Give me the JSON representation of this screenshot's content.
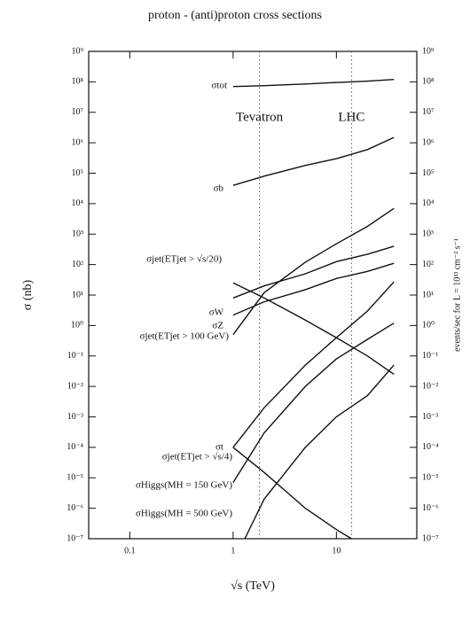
{
  "chart_data": {
    "type": "line",
    "title": "proton - (anti)proton cross sections",
    "x_label": "√s  (TeV)",
    "y_label": "σ  (nb)",
    "y2_label": "events/sec  for  L = 10³³ cm⁻² s⁻¹",
    "xlog": true,
    "ylog": true,
    "xlim": [
      0.04,
      60
    ],
    "ylim": [
      1e-07,
      1000000000.0
    ],
    "y2lim": [
      1e-07,
      1000000000.0
    ],
    "xticks": [
      0.1,
      1,
      10
    ],
    "yticks": [
      {
        "value": 1e-07,
        "label": "10⁻⁷"
      },
      {
        "value": 1e-06,
        "label": "10⁻⁶"
      },
      {
        "value": 1e-05,
        "label": "10⁻⁵"
      },
      {
        "value": 0.0001,
        "label": "10⁻⁴"
      },
      {
        "value": 0.001,
        "label": "10⁻³"
      },
      {
        "value": 0.01,
        "label": "10⁻²"
      },
      {
        "value": 0.1,
        "label": "10⁻¹"
      },
      {
        "value": 1,
        "label": "10⁰"
      },
      {
        "value": 10,
        "label": "10¹"
      },
      {
        "value": 100,
        "label": "10²"
      },
      {
        "value": 1000,
        "label": "10³"
      },
      {
        "value": 10000,
        "label": "10⁴"
      },
      {
        "value": 100000,
        "label": "10⁵"
      },
      {
        "value": 1000000,
        "label": "10⁶"
      },
      {
        "value": 10000000,
        "label": "10⁷"
      },
      {
        "value": 100000000,
        "label": "10⁸"
      },
      {
        "value": 1000000000,
        "label": "10⁹"
      }
    ],
    "y2ticks": [
      {
        "value": 1e-07,
        "label": "10⁻⁷"
      },
      {
        "value": 1e-06,
        "label": "10⁻⁶"
      },
      {
        "value": 1e-05,
        "label": "10⁻⁵"
      },
      {
        "value": 0.0001,
        "label": "10⁻⁴"
      },
      {
        "value": 0.001,
        "label": "10⁻³"
      },
      {
        "value": 0.01,
        "label": "10⁻²"
      },
      {
        "value": 0.1,
        "label": "10⁻¹"
      },
      {
        "value": 1,
        "label": "10⁰"
      },
      {
        "value": 10,
        "label": "10¹"
      },
      {
        "value": 100,
        "label": "10²"
      },
      {
        "value": 1000,
        "label": "10³"
      },
      {
        "value": 10000,
        "label": "10⁴"
      },
      {
        "value": 100000,
        "label": "10⁵"
      },
      {
        "value": 1000000,
        "label": "10⁶"
      },
      {
        "value": 10000000,
        "label": "10⁷"
      },
      {
        "value": 100000000,
        "label": "10⁸"
      },
      {
        "value": 1000000000,
        "label": "10⁹"
      }
    ],
    "vlines": [
      {
        "x": 1.8,
        "label": "Tevatron"
      },
      {
        "x": 14,
        "label": "LHC"
      }
    ],
    "series": [
      {
        "name": "σtot",
        "color": "#111111",
        "x": [
          1,
          2,
          5,
          10,
          20,
          36
        ],
        "values": [
          70000000,
          75000000,
          85000000,
          95000000,
          105000000,
          120000000
        ]
      },
      {
        "name": "σb",
        "color": "#111111",
        "x": [
          1,
          2,
          5,
          10,
          20,
          36
        ],
        "values": [
          40000,
          80000,
          180000,
          300000,
          600000,
          1500000
        ]
      },
      {
        "name": "σjet(ETjet > √s/20)",
        "color": "#111111",
        "x": [
          1,
          2,
          5,
          10,
          20,
          36
        ],
        "values": [
          25,
          8,
          1.5,
          0.4,
          0.1,
          0.025
        ]
      },
      {
        "name": "σW",
        "color": "#111111",
        "x": [
          1,
          2,
          5,
          10,
          20,
          36
        ],
        "values": [
          8,
          20,
          50,
          125,
          220,
          400
        ]
      },
      {
        "name": "σZ",
        "color": "#111111",
        "x": [
          1,
          2,
          5,
          10,
          20,
          36
        ],
        "values": [
          2.2,
          6,
          15,
          35,
          60,
          110
        ]
      },
      {
        "name": "σjet(ETjet > 100 GeV)",
        "color": "#111111",
        "x": [
          1,
          2,
          5,
          10,
          20,
          36
        ],
        "values": [
          0.5,
          12,
          120,
          480,
          1800,
          7000
        ]
      },
      {
        "name": "σt",
        "color": "#111111",
        "x": [
          1,
          2,
          5,
          10,
          20,
          36
        ],
        "values": [
          0.0001,
          0.002,
          0.05,
          0.4,
          3,
          27
        ]
      },
      {
        "name": "σjet(ETjet > √s/4)",
        "color": "#111111",
        "x": [
          1,
          2,
          5,
          10,
          14
        ],
        "values": [
          0.0001,
          1.5e-05,
          1e-06,
          2e-07,
          1e-07
        ]
      },
      {
        "name": "σHiggs(MH = 150 GeV)",
        "color": "#111111",
        "x": [
          1,
          2,
          5,
          10,
          20,
          36
        ],
        "values": [
          7e-06,
          0.0003,
          0.01,
          0.08,
          0.35,
          1.2
        ]
      },
      {
        "name": "σHiggs(MH = 500 GeV)",
        "color": "#111111",
        "x": [
          1.3,
          2,
          5,
          10,
          20,
          36
        ],
        "values": [
          1e-07,
          2e-06,
          0.0001,
          0.001,
          0.005,
          0.05
        ]
      }
    ]
  }
}
